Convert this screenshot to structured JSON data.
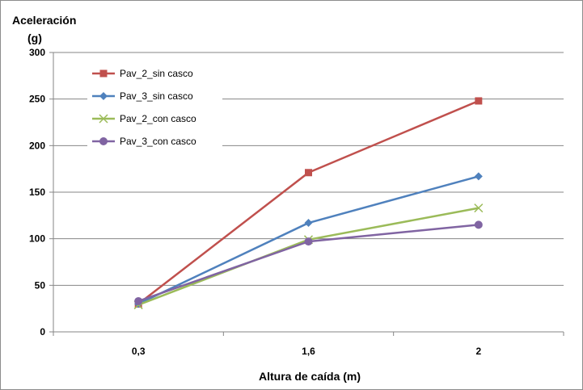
{
  "chart_data": {
    "type": "line",
    "categories": [
      "0,3",
      "1,6",
      "2"
    ],
    "ylabel_lines": [
      "Aceleración",
      "(g)"
    ],
    "xlabel": "Altura de caída (m)",
    "ylim": [
      0,
      300
    ],
    "yticks": [
      0,
      50,
      100,
      150,
      200,
      250,
      300
    ],
    "grid": "horizontal",
    "legend_position": "top-left",
    "series": [
      {
        "name": "Pav_2_sin casco",
        "values": [
          30,
          171,
          248
        ],
        "color": "#c0504d",
        "marker": "square"
      },
      {
        "name": "Pav_3_sin casco",
        "values": [
          30,
          117,
          167
        ],
        "color": "#4f81bd",
        "marker": "diamond"
      },
      {
        "name": "Pav_2_con casco",
        "values": [
          29,
          99,
          133
        ],
        "color": "#9bbb59",
        "marker": "x"
      },
      {
        "name": "Pav_3_con casco",
        "values": [
          33,
          97,
          115
        ],
        "color": "#8064a2",
        "marker": "circle"
      }
    ]
  }
}
